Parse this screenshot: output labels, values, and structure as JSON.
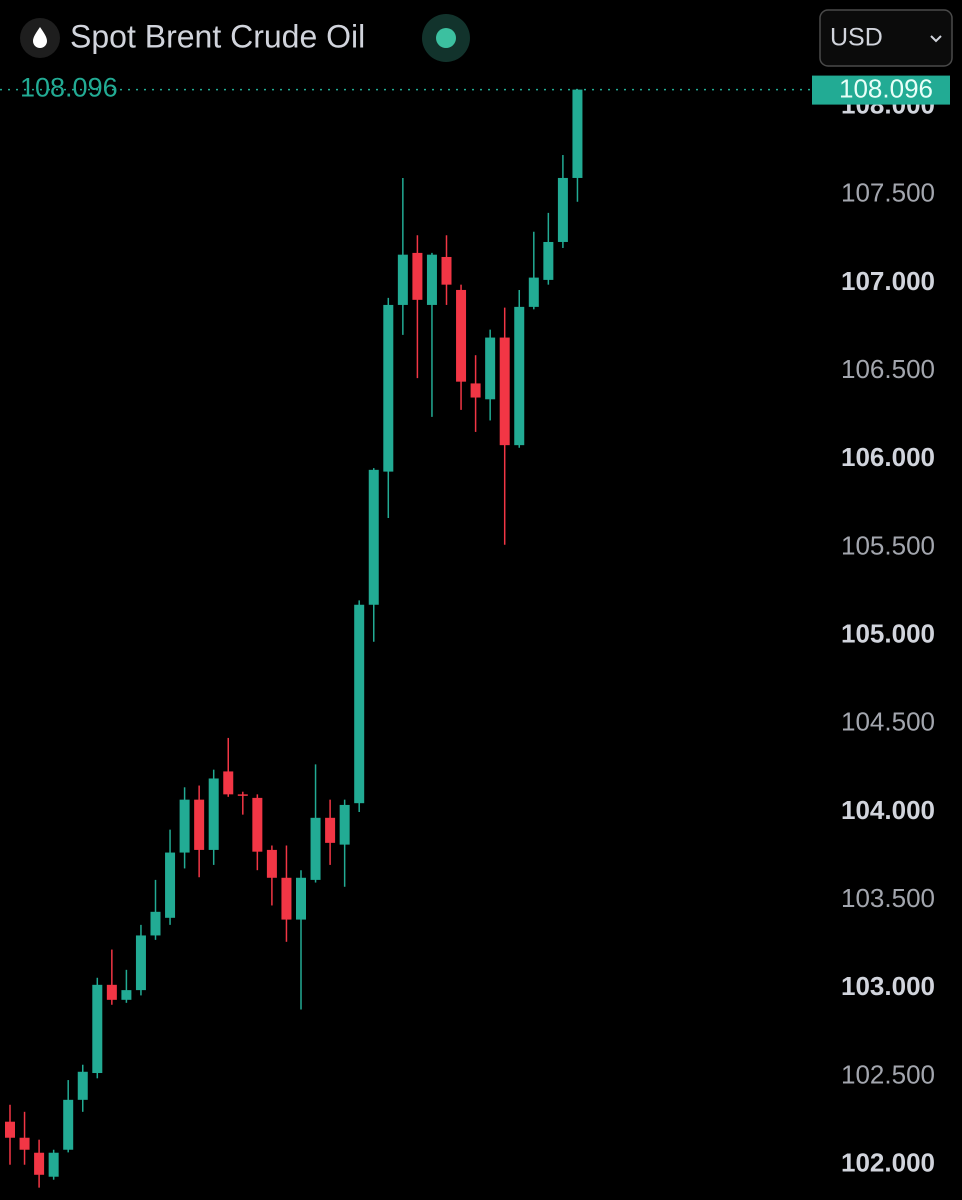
{
  "chart_data": {
    "type": "candlestick",
    "title": "Spot Brent Crude Oil",
    "open": [
      102.244,
      102.153,
      102.068,
      101.932,
      102.085,
      102.368,
      102.52,
      103.02,
      102.935,
      102.99,
      103.3,
      103.4,
      103.77,
      104.07,
      103.785,
      104.23,
      104.1,
      104.08,
      103.785,
      103.627,
      103.39,
      103.615,
      103.967,
      103.815,
      104.05,
      105.175,
      105.93,
      106.875,
      107.17,
      106.875,
      107.147,
      106.96,
      106.43,
      106.34,
      106.69,
      106.08,
      106.864,
      107.017,
      107.232,
      107.595
    ],
    "high": [
      102.34,
      102.3,
      102.142,
      102.085,
      102.48,
      102.567,
      103.06,
      103.22,
      103.105,
      103.36,
      103.615,
      103.9,
      104.14,
      104.15,
      104.24,
      104.42,
      104.115,
      104.1,
      103.81,
      103.81,
      103.67,
      104.27,
      104.07,
      104.07,
      105.2,
      105.95,
      106.915,
      107.595,
      107.27,
      107.17,
      107.27,
      106.99,
      106.59,
      106.735,
      106.86,
      106.96,
      107.29,
      107.397,
      107.725,
      108.096
    ],
    "low": [
      102.0,
      102.0,
      101.87,
      101.915,
      102.07,
      102.3,
      102.49,
      102.907,
      102.918,
      102.96,
      103.275,
      103.36,
      103.68,
      103.63,
      103.7,
      104.086,
      103.985,
      103.67,
      103.47,
      103.264,
      102.88,
      103.6,
      103.7,
      103.576,
      104.0,
      104.965,
      105.667,
      106.705,
      106.46,
      106.24,
      106.875,
      106.28,
      106.155,
      106.22,
      105.515,
      106.065,
      106.85,
      106.99,
      107.198,
      107.46
    ],
    "close": [
      102.153,
      102.085,
      101.943,
      102.068,
      102.368,
      102.527,
      103.02,
      102.935,
      102.99,
      103.3,
      103.434,
      103.77,
      104.07,
      103.785,
      104.19,
      104.1,
      104.095,
      103.775,
      103.627,
      103.39,
      103.627,
      103.967,
      103.825,
      104.04,
      105.175,
      105.94,
      106.875,
      107.16,
      106.904,
      107.16,
      106.99,
      106.44,
      106.35,
      106.69,
      106.08,
      106.864,
      107.03,
      107.232,
      107.595,
      108.096
    ],
    "colors": {
      "up": "#22ab94",
      "down": "#f23645"
    },
    "last_price": 108.096,
    "ylim": [
      101.8,
      108.604
    ],
    "yticks": [
      {
        "value": 102,
        "label": "102.000"
      },
      {
        "value": 102.5,
        "label": "102.500"
      },
      {
        "value": 103,
        "label": "103.000"
      },
      {
        "value": 103.5,
        "label": "103.500"
      },
      {
        "value": 104,
        "label": "104.000"
      },
      {
        "value": 104.5,
        "label": "104.500"
      },
      {
        "value": 105,
        "label": "105.000"
      },
      {
        "value": 105.5,
        "label": "105.500"
      },
      {
        "value": 106,
        "label": "106.000"
      },
      {
        "value": 106.5,
        "label": "106.500"
      },
      {
        "value": 107,
        "label": "107.000"
      },
      {
        "value": 107.5,
        "label": "107.500"
      },
      {
        "value": 108,
        "label": "108.000"
      }
    ],
    "grid": false
  },
  "controls": {
    "currency": "USD"
  }
}
